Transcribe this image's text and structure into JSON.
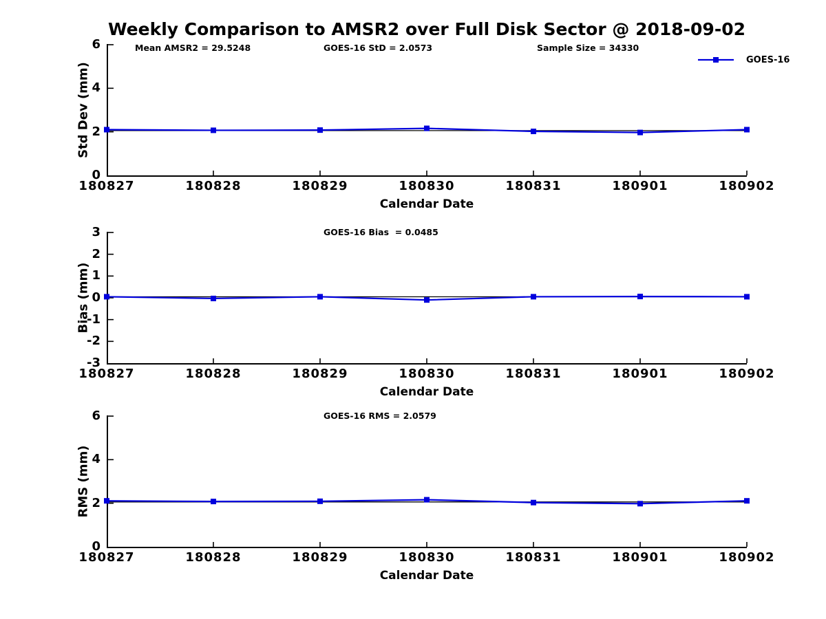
{
  "title": "Weekly Comparison to AMSR2 over Full Disk Sector @ 2018-09-02",
  "legend": {
    "label": "GOES-16",
    "color": "#0000dd"
  },
  "chart_data": [
    {
      "type": "line",
      "name": "std-dev",
      "annotations": [
        "Mean AMSR2 = 29.5248",
        "GOES-16 StD = 2.0573",
        "Sample Size = 34330"
      ],
      "x_categories": [
        "180827",
        "180828",
        "180829",
        "180830",
        "180831",
        "180901",
        "180902"
      ],
      "xlabel": "Calendar Date",
      "ylabel": "Std Dev (mm)",
      "ylim": [
        0,
        6
      ],
      "yticks": [
        0,
        2,
        4,
        6
      ],
      "grid": false,
      "legend_position": "top-right-no-box",
      "series": [
        {
          "name": "GOES-16",
          "color": "#0000dd",
          "marker": "square",
          "values": [
            2.1,
            2.07,
            2.08,
            2.16,
            2.02,
            1.97,
            2.1
          ]
        }
      ],
      "ref_line": {
        "value": 2.0573,
        "color": "#000000"
      }
    },
    {
      "type": "line",
      "name": "bias",
      "annotations": [
        "GOES-16 Bias  = 0.0485"
      ],
      "x_categories": [
        "180827",
        "180828",
        "180829",
        "180830",
        "180831",
        "180901",
        "180902"
      ],
      "xlabel": "Calendar Date",
      "ylabel": "Bias (mm)",
      "ylim": [
        -3,
        3
      ],
      "yticks": [
        3,
        2,
        1,
        0,
        -1,
        -2,
        -3
      ],
      "grid": false,
      "series": [
        {
          "name": "GOES-16",
          "color": "#0000dd",
          "marker": "square",
          "values": [
            0.05,
            -0.03,
            0.05,
            -0.1,
            0.05,
            0.06,
            0.05
          ]
        }
      ],
      "ref_line": {
        "value": 0.0485,
        "color": "#000000"
      }
    },
    {
      "type": "line",
      "name": "rms",
      "annotations": [
        "GOES-16 RMS = 2.0579"
      ],
      "x_categories": [
        "180827",
        "180828",
        "180829",
        "180830",
        "180831",
        "180901",
        "180902"
      ],
      "xlabel": "Calendar Date",
      "ylabel": "RMS (mm)",
      "ylim": [
        0,
        6
      ],
      "yticks": [
        0,
        2,
        4,
        6
      ],
      "grid": false,
      "series": [
        {
          "name": "GOES-16",
          "color": "#0000dd",
          "marker": "square",
          "values": [
            2.11,
            2.08,
            2.09,
            2.16,
            2.03,
            1.98,
            2.11
          ]
        }
      ],
      "ref_line": {
        "value": 2.0579,
        "color": "#000000"
      }
    }
  ]
}
